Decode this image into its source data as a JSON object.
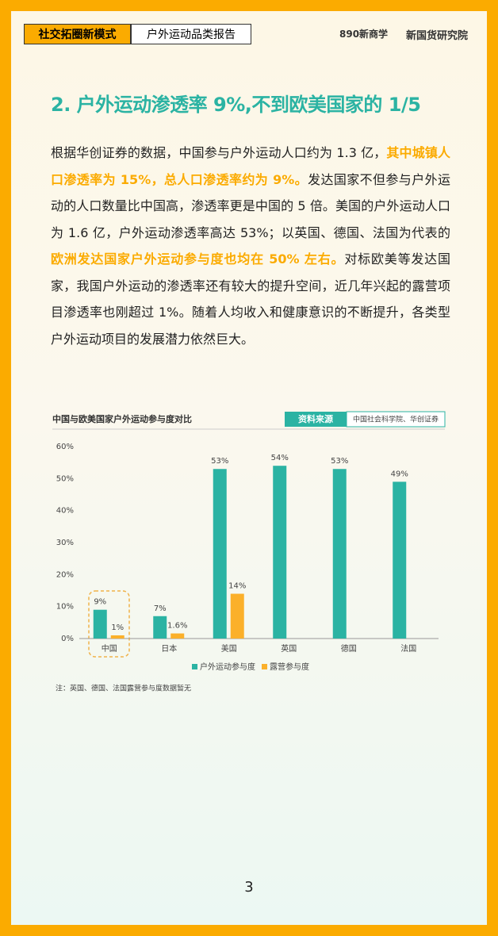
{
  "header": {
    "tab": "社交拓圈新模式",
    "report": "户外运动品类报告",
    "logo_left": "890新商学",
    "logo_right": "新国货研究院"
  },
  "heading": "2. 户外运动渗透率 9%,不到欧美国家的 1/5",
  "paragraph": [
    {
      "text": "根据华创证券的数据，中国参与户外运动人口约为 1.3 亿，",
      "emphasis": false
    },
    {
      "text": "其中城镇人口渗透率为 15%，总人口渗透率约为 9%。",
      "emphasis": true
    },
    {
      "text": "发达国家不但参与户外运动的人口数量比中国高，渗透率更是中国的 5 倍。美国的户外运动人口为 1.6 亿，户外运动渗透率高达 53%；以英国、德国、法国为代表的",
      "emphasis": false
    },
    {
      "text": "欧洲发达国家户外运动参与度也均在 50% 左右。",
      "emphasis": true
    },
    {
      "text": "对标欧美等发达国家，我国户外运动的渗透率还有较大的提升空间，近几年兴起的露营项目渗透率也刚超过 1%。随着人均收入和健康意识的不断提升，各类型户外运动项目的发展潜力依然巨大。",
      "emphasis": false
    }
  ],
  "chart_data": {
    "type": "bar",
    "title": "中国与欧美国家户外运动参与度对比",
    "source_label": "资料来源",
    "source": "中国社会科学院、华创证券",
    "categories": [
      "中国",
      "日本",
      "美国",
      "英国",
      "德国",
      "法国"
    ],
    "series": [
      {
        "name": "户外运动参与度",
        "color": "#2bb3a3",
        "values": [
          9,
          7,
          53,
          54,
          53,
          49
        ],
        "value_labels": [
          "9%",
          "7%",
          "53%",
          "54%",
          "53%",
          "49%"
        ]
      },
      {
        "name": "露营参与度",
        "color": "#fbb02a",
        "values": [
          1,
          1.6,
          14,
          null,
          null,
          null
        ],
        "value_labels": [
          "1%",
          "1.6%",
          "14%",
          null,
          null,
          null
        ]
      }
    ],
    "ylim": [
      0,
      60
    ],
    "yticks": [
      {
        "value": 0,
        "label": "0%"
      },
      {
        "value": 10,
        "label": "10%"
      },
      {
        "value": 20,
        "label": "20%"
      },
      {
        "value": 30,
        "label": "30%"
      },
      {
        "value": 40,
        "label": "40%"
      },
      {
        "value": 50,
        "label": "50%"
      },
      {
        "value": 60,
        "label": "60%"
      }
    ],
    "grid": false,
    "note": "注：英国、德国、法国露营参与度数据暂无"
  },
  "page_number": "3"
}
